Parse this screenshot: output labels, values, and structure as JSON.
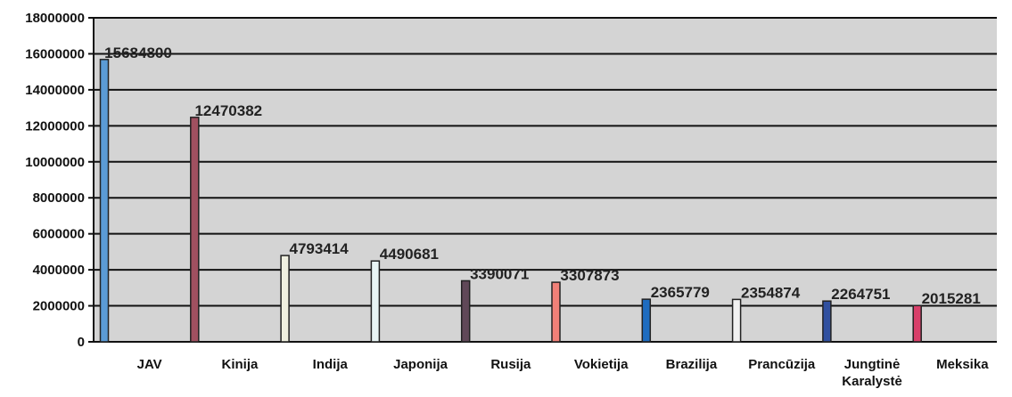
{
  "chart_data": {
    "type": "bar",
    "categories": [
      "JAV",
      "Kinija",
      "Indija",
      "Japonija",
      "Rusija",
      "Vokietija",
      "Brazilija",
      "Prancūzija",
      "Jungtinė Karalystė",
      "Meksika"
    ],
    "category_lines": [
      [
        "JAV"
      ],
      [
        "Kinija"
      ],
      [
        "Indija"
      ],
      [
        "Japonija"
      ],
      [
        "Rusija"
      ],
      [
        "Vokietija"
      ],
      [
        "Brazilija"
      ],
      [
        "Prancūzija"
      ],
      [
        "Jungtinė",
        "Karalystė"
      ],
      [
        "Meksika"
      ]
    ],
    "values": [
      15684800,
      12470382,
      4793414,
      4490681,
      3390071,
      3307873,
      2365779,
      2354874,
      2264751,
      2015281
    ],
    "data_labels": [
      "15684800",
      "12470382",
      "4793414",
      "4490681",
      "3390071",
      "3307873",
      "2365779",
      "2354874",
      "2264751",
      "2015281"
    ],
    "bar_colors": [
      "#5b9bd5",
      "#a05060",
      "#f0f0e0",
      "#e8f4f4",
      "#604858",
      "#f08078",
      "#1e6cc0",
      "#f2f2f2",
      "#3050a0",
      "#d8406a"
    ],
    "y_ticks": [
      "0",
      "2000000",
      "4000000",
      "6000000",
      "8000000",
      "10000000",
      "12000000",
      "14000000",
      "16000000",
      "18000000"
    ],
    "ylim": [
      0,
      18000000
    ],
    "grid": true,
    "legend": "none",
    "title": "",
    "xlabel": "",
    "ylabel": "",
    "plot_background": "#d4d4d4"
  }
}
